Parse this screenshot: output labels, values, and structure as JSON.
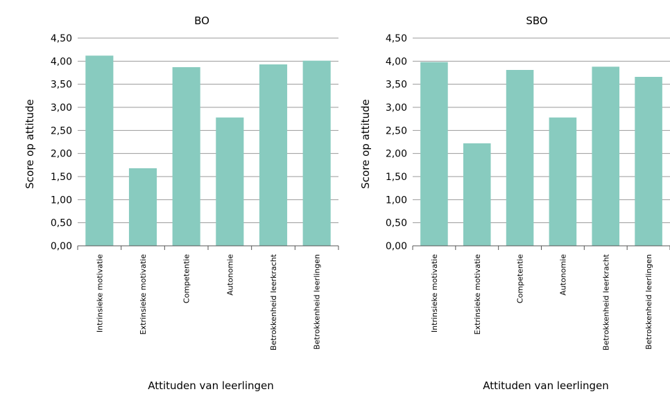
{
  "chart_data": [
    {
      "type": "bar",
      "title": "BO",
      "xlabel": "Attituden van leerlingen",
      "ylabel": "Score op attitude",
      "ylim": [
        0,
        4.5
      ],
      "yticks": [
        "0,00",
        "0,50",
        "1,00",
        "1,50",
        "2,00",
        "2,50",
        "3,00",
        "3,50",
        "4,00",
        "4,50"
      ],
      "grid": true,
      "categories": [
        "Intrinsieke motivatie",
        "Extrinsieke motivatie",
        "Competentie",
        "Autonomie",
        "Betrokkenheid leerkracht",
        "Betrokkenheid leerlingen"
      ],
      "values": [
        4.12,
        1.68,
        3.87,
        2.78,
        3.93,
        4.01
      ],
      "color": "#88cbbf"
    },
    {
      "type": "bar",
      "title": "SBO",
      "xlabel": "Attituden van leerlingen",
      "ylabel": "Score op attitude",
      "ylim": [
        0,
        4.5
      ],
      "yticks": [
        "0,00",
        "0,50",
        "1,00",
        "1,50",
        "2,00",
        "2,50",
        "3,00",
        "3,50",
        "4,00",
        "4,50"
      ],
      "grid": true,
      "categories": [
        "Intrinsieke motivatie",
        "Extrinsieke motivatie",
        "Competentie",
        "Autonomie",
        "Betrokkenheid leerkracht",
        "Betrokkenheid leerlingen"
      ],
      "values": [
        3.98,
        2.22,
        3.81,
        2.78,
        3.88,
        3.66
      ],
      "color": "#88cbbf"
    }
  ]
}
